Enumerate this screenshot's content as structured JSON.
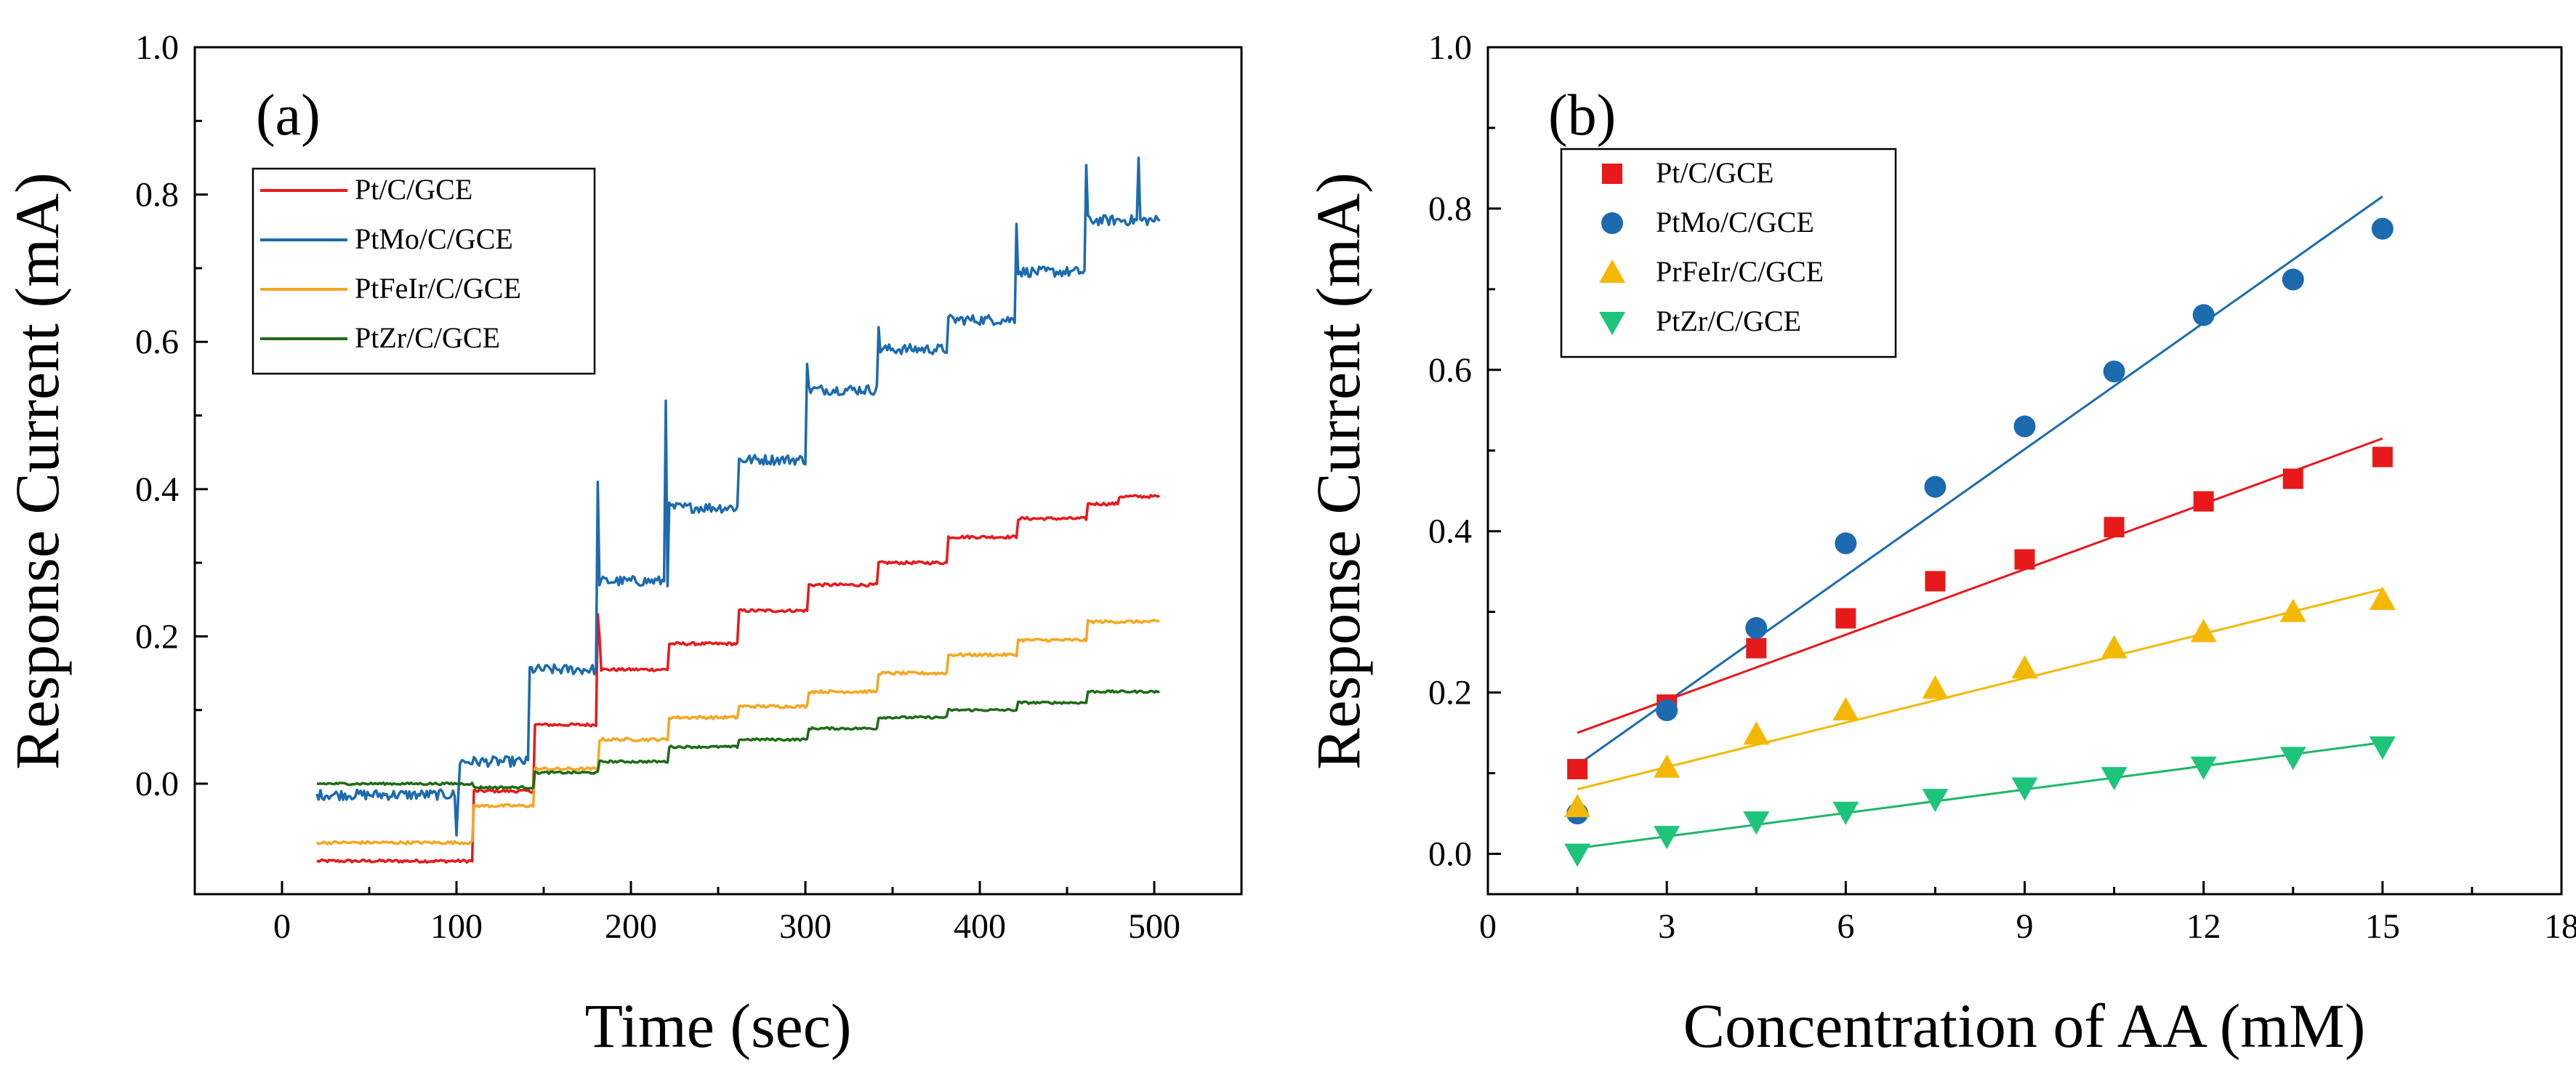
{
  "chart_data": [
    {
      "panel": "(a)",
      "type": "line",
      "xlabel": "Time (sec)",
      "ylabel": "Response Current (mA)",
      "xlim": [
        -50,
        550
      ],
      "ylim": [
        -0.15,
        1.0
      ],
      "xticks": [
        0,
        100,
        200,
        300,
        400,
        500
      ],
      "yticks": [
        0.0,
        0.2,
        0.4,
        0.6,
        0.8,
        1.0
      ],
      "xtick_labels": [
        "0",
        "100",
        "200",
        "300",
        "400",
        "500"
      ],
      "ytick_labels": [
        "0.0",
        "0.2",
        "0.4",
        "0.6",
        "0.8",
        "1.0"
      ],
      "legend_position": "top-left",
      "series": [
        {
          "name": "Pt/C/GCE",
          "color": "#e8191b",
          "levels": [
            [
              20,
              -0.105
            ],
            [
              110,
              -0.01
            ],
            [
              145,
              0.08
            ],
            [
              182,
              0.155
            ],
            [
              222,
              0.19
            ],
            [
              262,
              0.235
            ],
            [
              302,
              0.27
            ],
            [
              342,
              0.3
            ],
            [
              382,
              0.335
            ],
            [
              422,
              0.36
            ],
            [
              462,
              0.38
            ],
            [
              480,
              0.39
            ]
          ],
          "spikes": [
            [
              181,
              0.23
            ],
            [
              182,
              0.2
            ]
          ]
        },
        {
          "name": "PtMo/C/GCE",
          "color": "#1c6aaf",
          "levels": [
            [
              20,
              -0.015
            ],
            [
              102,
              0.03
            ],
            [
              142,
              0.155
            ],
            [
              182,
              0.275
            ],
            [
              222,
              0.375
            ],
            [
              262,
              0.44
            ],
            [
              302,
              0.535
            ],
            [
              342,
              0.59
            ],
            [
              382,
              0.63
            ],
            [
              422,
              0.695
            ],
            [
              462,
              0.765
            ]
          ],
          "spikes": [
            [
              100,
              -0.07
            ],
            [
              181,
              0.41
            ],
            [
              220,
              0.52
            ],
            [
              301,
              0.57
            ],
            [
              342,
              0.62
            ],
            [
              421,
              0.76
            ],
            [
              461,
              0.84
            ],
            [
              491,
              0.85
            ]
          ]
        },
        {
          "name": "PtFeIr/C/GCE",
          "color": "#f5a623",
          "levels": [
            [
              20,
              -0.08
            ],
            [
              110,
              -0.03
            ],
            [
              145,
              0.02
            ],
            [
              182,
              0.06
            ],
            [
              222,
              0.09
            ],
            [
              262,
              0.105
            ],
            [
              302,
              0.125
            ],
            [
              342,
              0.15
            ],
            [
              382,
              0.175
            ],
            [
              422,
              0.195
            ],
            [
              462,
              0.22
            ]
          ],
          "spikes": []
        },
        {
          "name": "PtZr/C/GCE",
          "color": "#1f6b16",
          "levels": [
            [
              20,
              0.0
            ],
            [
              110,
              -0.005
            ],
            [
              145,
              0.015
            ],
            [
              182,
              0.03
            ],
            [
              222,
              0.05
            ],
            [
              262,
              0.06
            ],
            [
              302,
              0.075
            ],
            [
              342,
              0.09
            ],
            [
              382,
              0.1
            ],
            [
              422,
              0.11
            ],
            [
              462,
              0.125
            ]
          ],
          "spikes": []
        }
      ]
    },
    {
      "panel": "(b)",
      "type": "scatter",
      "xlabel": "Concentration of AA (mM)",
      "ylabel": "Response Current (mA)",
      "xlim": [
        0,
        18
      ],
      "ylim": [
        -0.05,
        1.0
      ],
      "xticks": [
        0,
        3,
        6,
        9,
        12,
        15,
        18
      ],
      "yticks": [
        0.0,
        0.2,
        0.4,
        0.6,
        0.8,
        1.0
      ],
      "xtick_labels": [
        "0",
        "3",
        "6",
        "9",
        "12",
        "15",
        "18"
      ],
      "ytick_labels": [
        "0.0",
        "0.2",
        "0.4",
        "0.6",
        "0.8",
        "1.0"
      ],
      "legend_position": "top-left",
      "x": [
        1.5,
        3,
        4.5,
        6,
        7.5,
        9,
        10.5,
        12,
        13.5,
        15
      ],
      "series": [
        {
          "name": "Pt/C/GCE",
          "marker": "square",
          "color": "#e8191b",
          "values": [
            0.105,
            0.185,
            0.255,
            0.292,
            0.338,
            0.365,
            0.405,
            0.437,
            0.465,
            0.492
          ],
          "fit": [
            [
              1.5,
              0.15
            ],
            [
              15,
              0.515
            ]
          ]
        },
        {
          "name": "PtMo/C/GCE",
          "marker": "circle",
          "color": "#1c6aaf",
          "values": [
            0.05,
            0.178,
            0.28,
            0.385,
            0.455,
            0.53,
            0.598,
            0.668,
            0.712,
            0.775
          ],
          "fit": [
            [
              1.5,
              0.11
            ],
            [
              15,
              0.815
            ]
          ]
        },
        {
          "name": "PrFeIr/C/GCE",
          "marker": "triangle-up",
          "color": "#f5b800",
          "values": [
            0.058,
            0.107,
            0.148,
            0.178,
            0.205,
            0.23,
            0.255,
            0.275,
            0.3,
            0.315
          ],
          "fit": [
            [
              1.5,
              0.08
            ],
            [
              15,
              0.328
            ]
          ]
        },
        {
          "name": "PtZr/C/GCE",
          "marker": "triangle-down",
          "color": "#1ec47a",
          "values": [
            0.0,
            0.022,
            0.04,
            0.052,
            0.068,
            0.082,
            0.095,
            0.108,
            0.12,
            0.133
          ],
          "fit": [
            [
              1.5,
              0.007
            ],
            [
              15,
              0.138
            ]
          ]
        }
      ]
    }
  ]
}
